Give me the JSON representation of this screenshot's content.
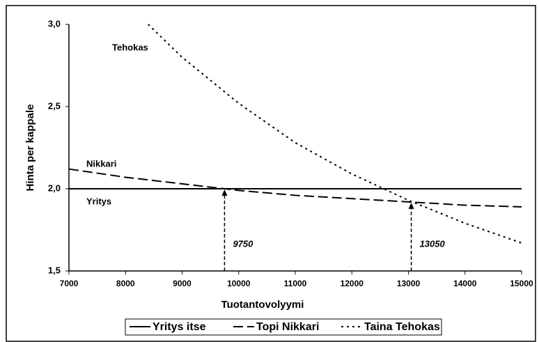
{
  "chart_data": {
    "type": "line",
    "xlabel": "Tuotantovolyymi",
    "ylabel": "Hinta per kappale",
    "xlim": [
      7000,
      15000
    ],
    "ylim": [
      1.5,
      3.0
    ],
    "xticks": [
      7000,
      8000,
      9000,
      10000,
      11000,
      12000,
      13000,
      14000,
      15000
    ],
    "yticks": [
      {
        "value": 1.5,
        "label": "1,5"
      },
      {
        "value": 2.0,
        "label": "2,0"
      },
      {
        "value": 2.5,
        "label": "2,5"
      },
      {
        "value": 3.0,
        "label": "3,0"
      }
    ],
    "grid": false,
    "legend": "bottom",
    "series": [
      {
        "name": "Yritys itse",
        "color": "#000000",
        "dash": "solid",
        "x": [
          7000,
          15000
        ],
        "values": [
          2.0,
          2.0
        ]
      },
      {
        "name": "Topi Nikkari",
        "color": "#000000",
        "dash": "dashed",
        "x": [
          7000,
          8000,
          9000,
          10000,
          11000,
          12000,
          13000,
          14000,
          15000
        ],
        "values": [
          2.12,
          2.07,
          2.03,
          1.99,
          1.96,
          1.94,
          1.92,
          1.9,
          1.89
        ]
      },
      {
        "name": "Taina Tehokas",
        "color": "#000000",
        "dash": "dotted",
        "x": [
          8400,
          9000,
          10000,
          11000,
          12000,
          13000,
          14000,
          15000
        ],
        "values": [
          3.0,
          2.8,
          2.52,
          2.28,
          2.09,
          1.93,
          1.79,
          1.67
        ]
      }
    ],
    "labels": [
      "Tehokas",
      "Nikkari",
      "Yritys"
    ],
    "annotations": [
      {
        "x": 9750,
        "y": 2.0
      },
      {
        "x": 13050,
        "y": 1.92
      }
    ]
  }
}
